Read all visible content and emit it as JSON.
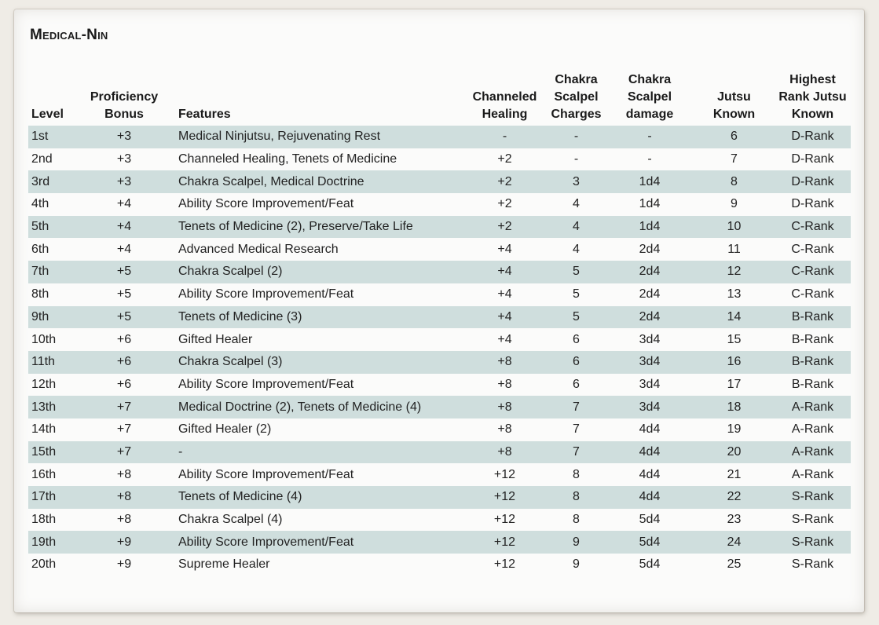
{
  "title": "Medical-Nin",
  "headers": [
    "Level",
    "Proficiency Bonus",
    "Features",
    "Channeled Healing",
    "Chakra Scalpel Charges",
    "Chakra Scalpel damage",
    "Jutsu Known",
    "Highest Rank Jutsu Known"
  ],
  "rows": [
    [
      "1st",
      "+3",
      "Medical Ninjutsu, Rejuvenating Rest",
      "-",
      "-",
      "-",
      "6",
      "D-Rank"
    ],
    [
      "2nd",
      "+3",
      "Channeled Healing, Tenets of Medicine",
      "+2",
      "-",
      "-",
      "7",
      "D-Rank"
    ],
    [
      "3rd",
      "+3",
      "Chakra Scalpel, Medical Doctrine",
      "+2",
      "3",
      "1d4",
      "8",
      "D-Rank"
    ],
    [
      "4th",
      "+4",
      "Ability Score Improvement/Feat",
      "+2",
      "4",
      "1d4",
      "9",
      "D-Rank"
    ],
    [
      "5th",
      "+4",
      "Tenets of Medicine (2), Preserve/Take Life",
      "+2",
      "4",
      "1d4",
      "10",
      "C-Rank"
    ],
    [
      "6th",
      "+4",
      "Advanced Medical Research",
      "+4",
      "4",
      "2d4",
      "11",
      "C-Rank"
    ],
    [
      "7th",
      "+5",
      "Chakra Scalpel (2)",
      "+4",
      "5",
      "2d4",
      "12",
      "C-Rank"
    ],
    [
      "8th",
      "+5",
      "Ability Score Improvement/Feat",
      "+4",
      "5",
      "2d4",
      "13",
      "C-Rank"
    ],
    [
      "9th",
      "+5",
      "Tenets of Medicine (3)",
      "+4",
      "5",
      "2d4",
      "14",
      "B-Rank"
    ],
    [
      "10th",
      "+6",
      "Gifted Healer",
      "+4",
      "6",
      "3d4",
      "15",
      "B-Rank"
    ],
    [
      "11th",
      "+6",
      "Chakra Scalpel (3)",
      "+8",
      "6",
      "3d4",
      "16",
      "B-Rank"
    ],
    [
      "12th",
      "+6",
      "Ability Score Improvement/Feat",
      "+8",
      "6",
      "3d4",
      "17",
      "B-Rank"
    ],
    [
      "13th",
      "+7",
      "Medical Doctrine (2), Tenets of Medicine (4)",
      "+8",
      "7",
      "3d4",
      "18",
      "A-Rank"
    ],
    [
      "14th",
      "+7",
      "Gifted Healer (2)",
      "+8",
      "7",
      "4d4",
      "19",
      "A-Rank"
    ],
    [
      "15th",
      "+7",
      "-",
      "+8",
      "7",
      "4d4",
      "20",
      "A-Rank"
    ],
    [
      "16th",
      "+8",
      "Ability Score Improvement/Feat",
      "+12",
      "8",
      "4d4",
      "21",
      "A-Rank"
    ],
    [
      "17th",
      "+8",
      "Tenets of Medicine (4)",
      "+12",
      "8",
      "4d4",
      "22",
      "S-Rank"
    ],
    [
      "18th",
      "+8",
      "Chakra Scalpel (4)",
      "+12",
      "8",
      "5d4",
      "23",
      "S-Rank"
    ],
    [
      "19th",
      "+9",
      "Ability Score Improvement/Feat",
      "+12",
      "9",
      "5d4",
      "24",
      "S-Rank"
    ],
    [
      "20th",
      "+9",
      "Supreme Healer",
      "+12",
      "9",
      "5d4",
      "25",
      "S-Rank"
    ]
  ],
  "colors": {
    "stripe": "#cfdedd",
    "paper": "#fbfbfa",
    "background": "#efece6"
  }
}
